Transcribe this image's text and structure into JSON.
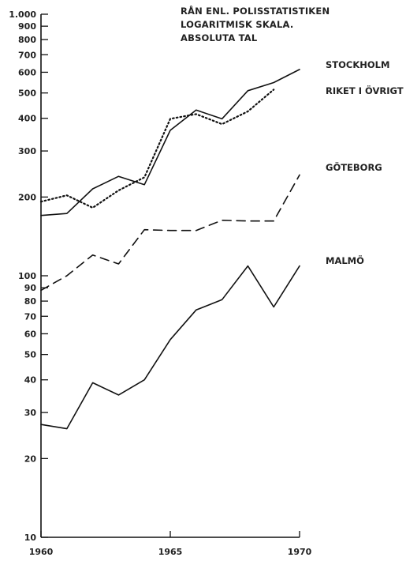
{
  "chart_data": {
    "type": "line",
    "title_lines": [
      "RÅN ENL. POLISSTATISTIKEN",
      "LOGARITMISK SKALA.",
      "ABSOLUTA TAL"
    ],
    "y_scale": "log",
    "ylim": [
      10,
      1000
    ],
    "yticks": [
      10,
      20,
      30,
      40,
      50,
      60,
      70,
      80,
      90,
      100,
      200,
      300,
      400,
      500,
      600,
      700,
      800,
      900,
      1000
    ],
    "ytick_labels": [
      "10",
      "20",
      "30",
      "40",
      "50",
      "60",
      "70",
      "80",
      "90",
      "100",
      "200",
      "300",
      "400",
      "500",
      "600",
      "700",
      "800",
      "900",
      "1.000"
    ],
    "xlim": [
      1960,
      1970
    ],
    "xticks": [
      1960,
      1965,
      1970
    ],
    "xtick_labels": [
      "1960",
      "1965",
      "1970"
    ],
    "grid": false,
    "series": [
      {
        "name": "STOCKHOLM",
        "style": "solid",
        "x": [
          1960,
          1961,
          1962,
          1963,
          1964,
          1965,
          1966,
          1967,
          1968,
          1969,
          1970
        ],
        "values": [
          170,
          173,
          215,
          240,
          223,
          360,
          430,
          398,
          510,
          548,
          615
        ]
      },
      {
        "name": "RIKET I ÖVRIGT",
        "style": "dotted",
        "x": [
          1960,
          1961,
          1962,
          1963,
          1964,
          1965,
          1966,
          1967,
          1968,
          1969
        ],
        "values": [
          192,
          203,
          182,
          212,
          238,
          398,
          415,
          380,
          425,
          515
        ]
      },
      {
        "name": "GÖTEBORG",
        "style": "dashed",
        "x": [
          1960,
          1961,
          1962,
          1963,
          1964,
          1965,
          1966,
          1967,
          1968,
          1969,
          1970
        ],
        "values": [
          88,
          100,
          120,
          111,
          150,
          149,
          149,
          163,
          162,
          162,
          243
        ]
      },
      {
        "name": "MALMÖ",
        "style": "solid",
        "x": [
          1960,
          1961,
          1962,
          1963,
          1964,
          1965,
          1966,
          1967,
          1968,
          1969,
          1970
        ],
        "values": [
          27,
          26,
          39,
          35,
          40,
          57,
          74,
          81,
          109,
          76,
          109
        ]
      }
    ]
  }
}
